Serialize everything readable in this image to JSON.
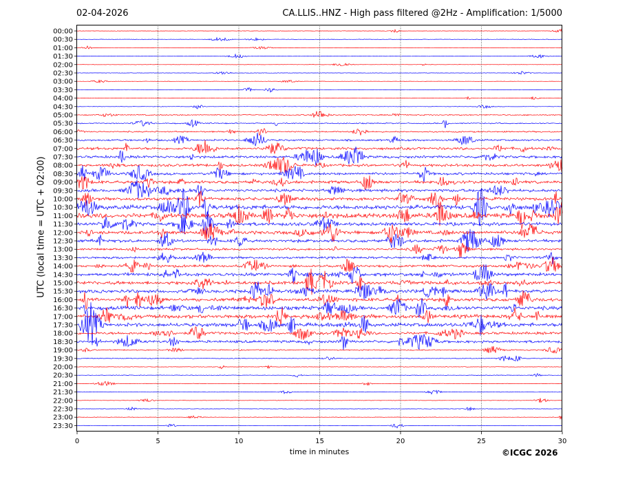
{
  "header": {
    "date": "02-04-2026",
    "title": "CA.LLIS..HNZ - High pass filtered @2Hz - Amplification: 1/5000"
  },
  "footer": {
    "copyright": "©ICGC 2026"
  },
  "chart_data": {
    "type": "line",
    "title": "CA.LLIS..HNZ - High pass filtered @2Hz - Amplification: 1/5000",
    "xlabel": "time in minutes",
    "ylabel": "UTC (local time = UTC + 02:00)",
    "xlim": [
      0,
      30
    ],
    "x_ticks": [
      0,
      5,
      10,
      15,
      20,
      25,
      30
    ],
    "grid": "vertical dotted lines at each 5 minutes",
    "row_labels": [
      "00:00",
      "00:30",
      "01:00",
      "01:30",
      "02:00",
      "02:30",
      "03:00",
      "03:30",
      "04:00",
      "04:30",
      "05:00",
      "05:30",
      "06:00",
      "06:30",
      "07:00",
      "07:30",
      "08:00",
      "08:30",
      "09:00",
      "09:30",
      "10:00",
      "10:30",
      "11:00",
      "11:30",
      "12:00",
      "12:30",
      "13:00",
      "13:30",
      "14:00",
      "14:30",
      "15:00",
      "15:30",
      "16:00",
      "16:30",
      "17:00",
      "17:30",
      "18:00",
      "18:30",
      "19:00",
      "19:30",
      "20:00",
      "20:30",
      "21:00",
      "21:30",
      "22:00",
      "22:30",
      "23:00",
      "23:30"
    ],
    "colors": {
      "even_rows": "#ff0000",
      "odd_rows": "#0000ff"
    },
    "activity_level": [
      0.5,
      0.6,
      0.5,
      0.5,
      0.5,
      0.6,
      0.5,
      0.5,
      0.5,
      0.6,
      1.5,
      1.5,
      1.8,
      2.5,
      3.5,
      3.5,
      3.5,
      3.5,
      4.0,
      4.0,
      4.0,
      6.0,
      6.5,
      4.5,
      4.5,
      4.0,
      3.0,
      3.0,
      3.5,
      4.5,
      4.5,
      4.5,
      4.5,
      5.0,
      5.0,
      5.0,
      3.5,
      3.5,
      1.5,
      1.0,
      0.8,
      0.8,
      0.6,
      0.6,
      0.6,
      0.6,
      0.6,
      0.6
    ]
  }
}
